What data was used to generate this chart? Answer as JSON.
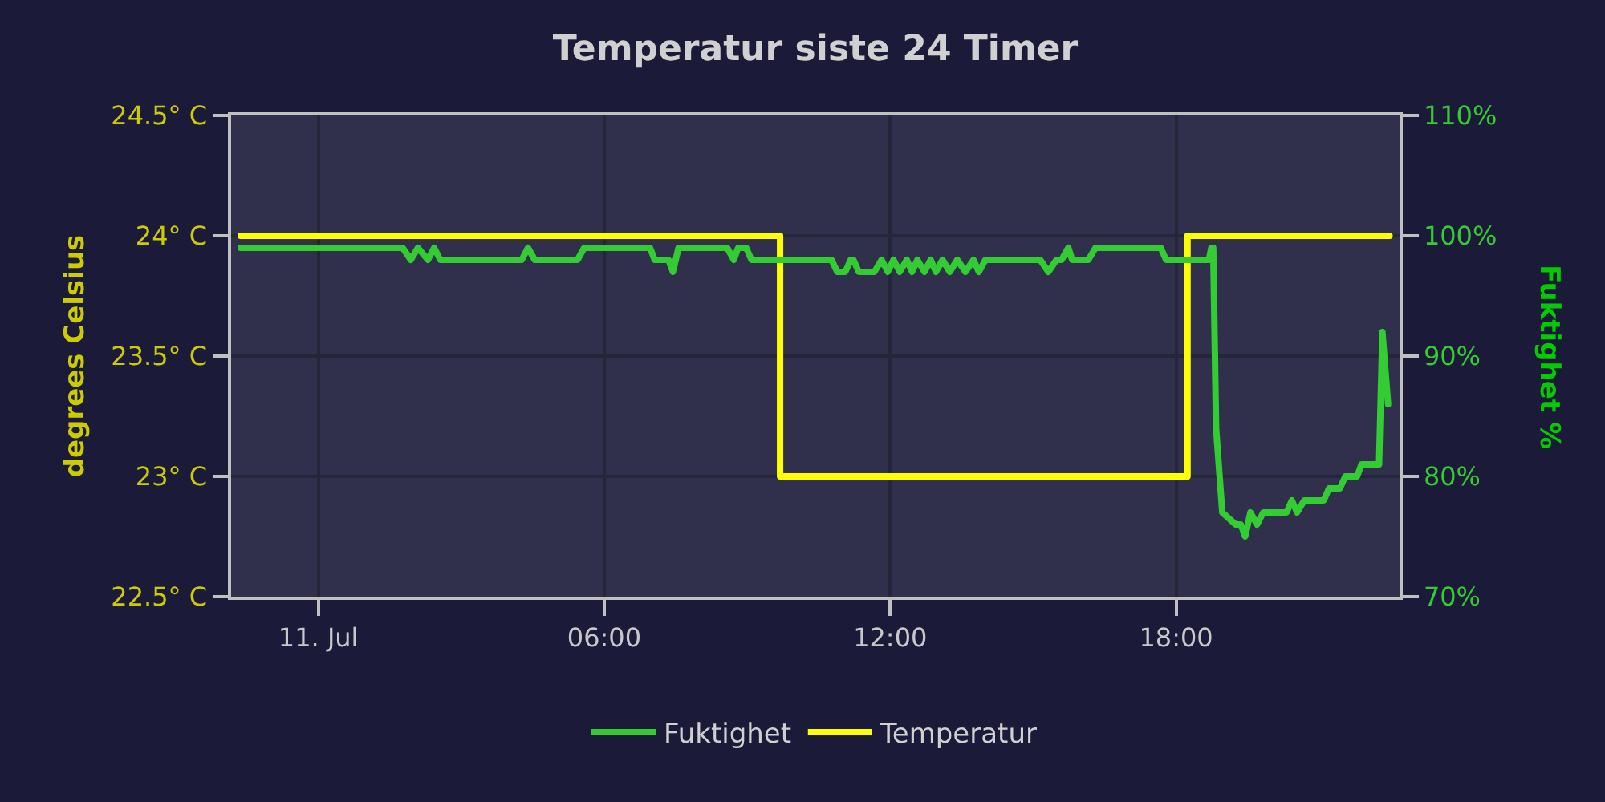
{
  "chart_data": {
    "type": "line",
    "title": "Temperatur siste 24 Timer",
    "ylabel": "degrees Celsius",
    "y2label": "Fuktighet %",
    "xlim": [
      -1.83,
      22.69
    ],
    "xticks": [
      {
        "value": 0,
        "label": "11. Jul"
      },
      {
        "value": 6,
        "label": "06:00"
      },
      {
        "value": 12,
        "label": "12:00"
      },
      {
        "value": 18,
        "label": "18:00"
      }
    ],
    "ylim": [
      22.5,
      24.5
    ],
    "yticks": [
      {
        "value": 22.5,
        "label": "22.5° C"
      },
      {
        "value": 23,
        "label": "23° C"
      },
      {
        "value": 23.5,
        "label": "23.5° C"
      },
      {
        "value": 24,
        "label": "24° C"
      },
      {
        "value": 24.5,
        "label": "24.5° C"
      }
    ],
    "y2lim": [
      70,
      110
    ],
    "y2ticks": [
      {
        "value": 70,
        "label": "70%"
      },
      {
        "value": 80,
        "label": "80%"
      },
      {
        "value": 90,
        "label": "90%"
      },
      {
        "value": 100,
        "label": "100%"
      },
      {
        "value": 110,
        "label": "110%"
      }
    ],
    "grid": true,
    "legend": "bottom",
    "series": [
      {
        "name": "Fuktighet",
        "color": "#33cc33",
        "axis": "y2",
        "x": [
          -1.63,
          1.77,
          1.94,
          2.09,
          2.3,
          2.43,
          2.56,
          4.27,
          4.4,
          4.54,
          5.44,
          5.58,
          6.96,
          7.06,
          7.35,
          7.44,
          7.56,
          8.58,
          8.72,
          8.81,
          8.98,
          9.09,
          10.77,
          10.89,
          11.06,
          11.17,
          11.23,
          11.34,
          11.67,
          11.82,
          11.95,
          12.07,
          12.2,
          12.35,
          12.46,
          12.57,
          12.72,
          12.85,
          12.96,
          13.1,
          13.25,
          13.41,
          13.58,
          13.75,
          13.86,
          14.0,
          15.15,
          15.32,
          15.49,
          15.6,
          15.74,
          15.82,
          16.16,
          16.31,
          17.68,
          17.79,
          18.69,
          18.74,
          18.78,
          18.84,
          18.97,
          19.25,
          19.36,
          19.45,
          19.56,
          19.7,
          19.83,
          20.32,
          20.43,
          20.54,
          20.69,
          21.1,
          21.21,
          21.44,
          21.55,
          21.8,
          21.89,
          22.26,
          22.33,
          22.45
        ],
        "values": [
          99,
          99,
          98,
          99,
          98,
          99,
          98,
          98,
          99,
          98,
          98,
          99,
          99,
          98,
          98,
          97,
          99,
          99,
          98,
          99,
          99,
          98,
          98,
          97,
          97,
          98,
          98,
          97,
          97,
          98,
          97,
          98,
          97,
          98,
          97,
          98,
          97,
          98,
          97,
          98,
          97,
          98,
          97,
          98,
          97,
          98,
          98,
          97,
          98,
          98,
          99,
          98,
          98,
          99,
          99,
          98,
          98,
          99,
          99,
          84,
          77,
          76,
          76,
          75,
          77,
          76,
          77,
          77,
          78,
          77,
          78,
          78,
          79,
          79,
          80,
          80,
          81,
          81,
          92,
          86
        ]
      },
      {
        "name": "Temperatur",
        "color": "#ffff00",
        "axis": "y",
        "type": "step",
        "x": [
          -1.63,
          9.69,
          18.24,
          22.48
        ],
        "values": [
          24,
          23,
          24,
          24
        ]
      }
    ]
  }
}
